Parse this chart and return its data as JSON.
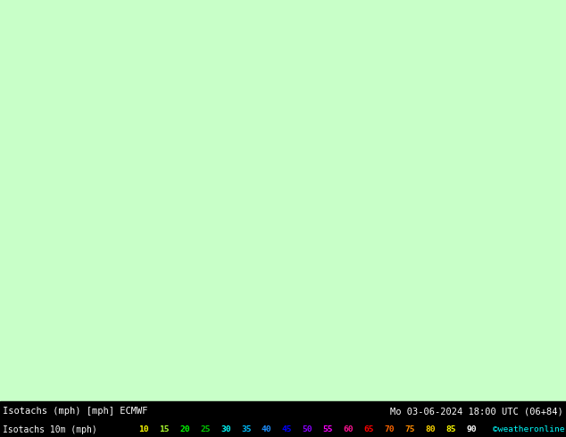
{
  "title_left": "Isotachs (mph) [mph] ECMWF",
  "title_right": "Mo 03-06-2024 18:00 UTC (06+84)",
  "legend_label": "Isotachs 10m (mph)",
  "copyright": "©weatheronline.co.uk",
  "legend_values": [
    10,
    15,
    20,
    25,
    30,
    35,
    40,
    45,
    50,
    55,
    60,
    65,
    70,
    75,
    80,
    85,
    90
  ],
  "legend_colors": [
    "#ffff00",
    "#c8ff00",
    "#00ff00",
    "#00c800",
    "#00ffff",
    "#00c8ff",
    "#0096ff",
    "#0000ff",
    "#9600ff",
    "#ff00ff",
    "#ff0096",
    "#ff0000",
    "#ff6400",
    "#ff9600",
    "#ffc800",
    "#ffff00",
    "#ffffff"
  ],
  "bg_color": "#c8ffc8",
  "map_bg_color": "#c8ffc8",
  "bottom_bar_color": "#000000",
  "figsize": [
    6.34,
    4.9
  ],
  "dpi": 100,
  "bottom_text_color": "#ffffff",
  "bottom_bg_color": "#000000"
}
